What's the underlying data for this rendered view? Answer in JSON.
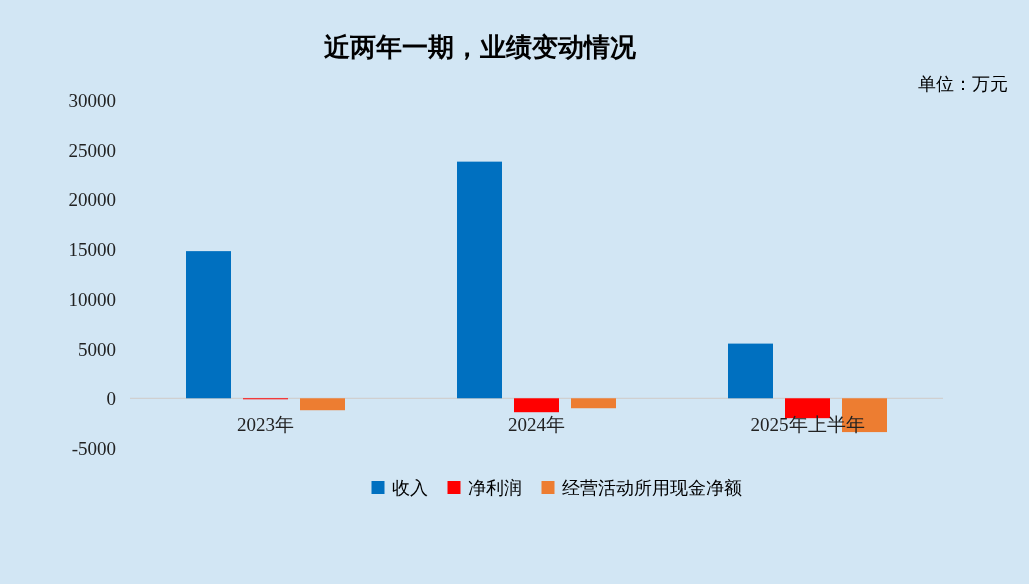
{
  "chart_data": {
    "type": "bar",
    "title": "近两年一期，业绩变动情况",
    "annotations": [
      "单位：万元"
    ],
    "categories": [
      "2023年",
      "2024年",
      "2025年上半年"
    ],
    "series": [
      {
        "name": "收入",
        "color": "#0070c0",
        "values": [
          14800,
          23800,
          5500
        ]
      },
      {
        "name": "净利润",
        "color": "#ff0000",
        "values": [
          -100,
          -1400,
          -2000
        ]
      },
      {
        "name": "经营活动所用现金净额",
        "color": "#ed7d31",
        "values": [
          -1200,
          -1000,
          -3400
        ]
      }
    ],
    "ylim": [
      -5000,
      30000
    ],
    "yticks": [
      -5000,
      0,
      5000,
      10000,
      15000,
      20000,
      25000,
      30000
    ],
    "grid": false,
    "legend": "bottom"
  }
}
